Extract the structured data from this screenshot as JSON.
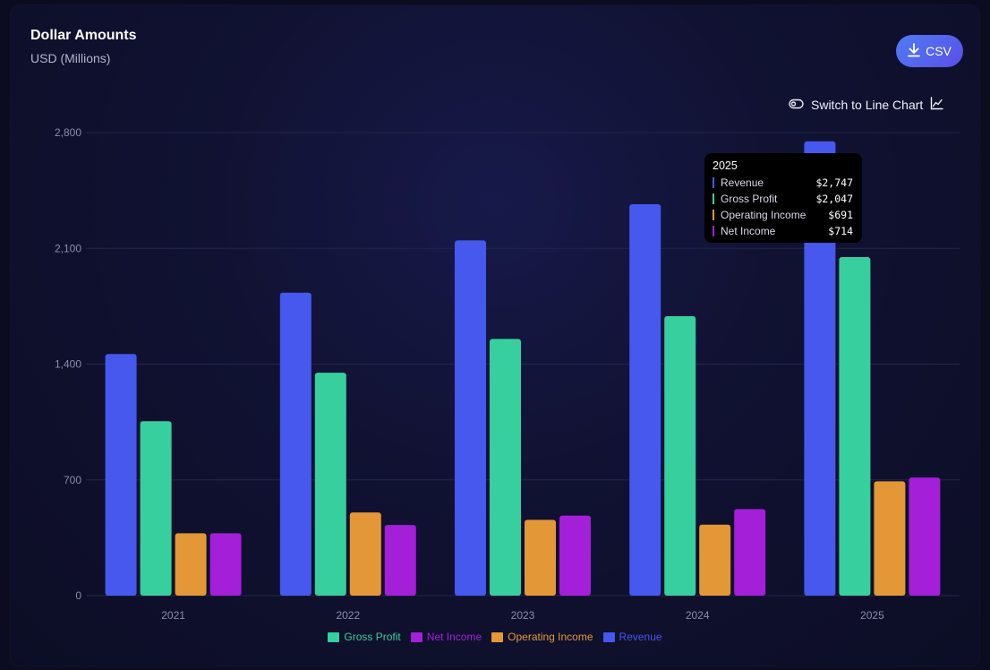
{
  "header": {
    "title": "Dollar Amounts",
    "subtitle": "USD (Millions)",
    "csv_label": "CSV",
    "switch_label": "Switch to Line Chart"
  },
  "colors": {
    "revenue": "#4658ee",
    "gross_profit": "#37cf9e",
    "operating_income": "#e39737",
    "net_income": "#a31fd8",
    "grid": "#23264a",
    "tick": "#8a8ca8"
  },
  "tooltip": {
    "title": "2025",
    "rows": [
      {
        "label": "Revenue",
        "value": "$2,747",
        "color": "#4658ee"
      },
      {
        "label": "Gross Profit",
        "value": "$2,047",
        "color": "#37cf9e"
      },
      {
        "label": "Operating Income",
        "value": "$691",
        "color": "#e39737"
      },
      {
        "label": "Net Income",
        "value": "$714",
        "color": "#a31fd8"
      }
    ]
  },
  "legend": [
    {
      "label": "Gross Profit",
      "color": "#37cf9e"
    },
    {
      "label": "Net Income",
      "color": "#a31fd8"
    },
    {
      "label": "Operating Income",
      "color": "#e39737"
    },
    {
      "label": "Revenue",
      "color": "#4658ee"
    }
  ],
  "chart_data": {
    "type": "bar",
    "title": "Dollar Amounts",
    "subtitle": "USD (Millions)",
    "categories": [
      "2021",
      "2022",
      "2023",
      "2024",
      "2025"
    ],
    "series": [
      {
        "name": "Revenue",
        "color": "#4658ee",
        "values": [
          1461,
          1832,
          2148,
          2367,
          2747
        ]
      },
      {
        "name": "Gross Profit",
        "color": "#37cf9e",
        "values": [
          1055,
          1348,
          1552,
          1690,
          2047
        ]
      },
      {
        "name": "Operating Income",
        "color": "#e39737",
        "values": [
          377,
          503,
          458,
          429,
          691
        ]
      },
      {
        "name": "Net Income",
        "color": "#a31fd8",
        "values": [
          377,
          427,
          484,
          523,
          714
        ]
      }
    ],
    "yticks": [
      0,
      700,
      1400,
      2100,
      2800
    ],
    "ytick_labels": [
      "0",
      "700",
      "1,400",
      "2,100",
      "2,800"
    ],
    "ylim": [
      0,
      2800
    ],
    "grid": true,
    "legend_position": "bottom-center"
  }
}
